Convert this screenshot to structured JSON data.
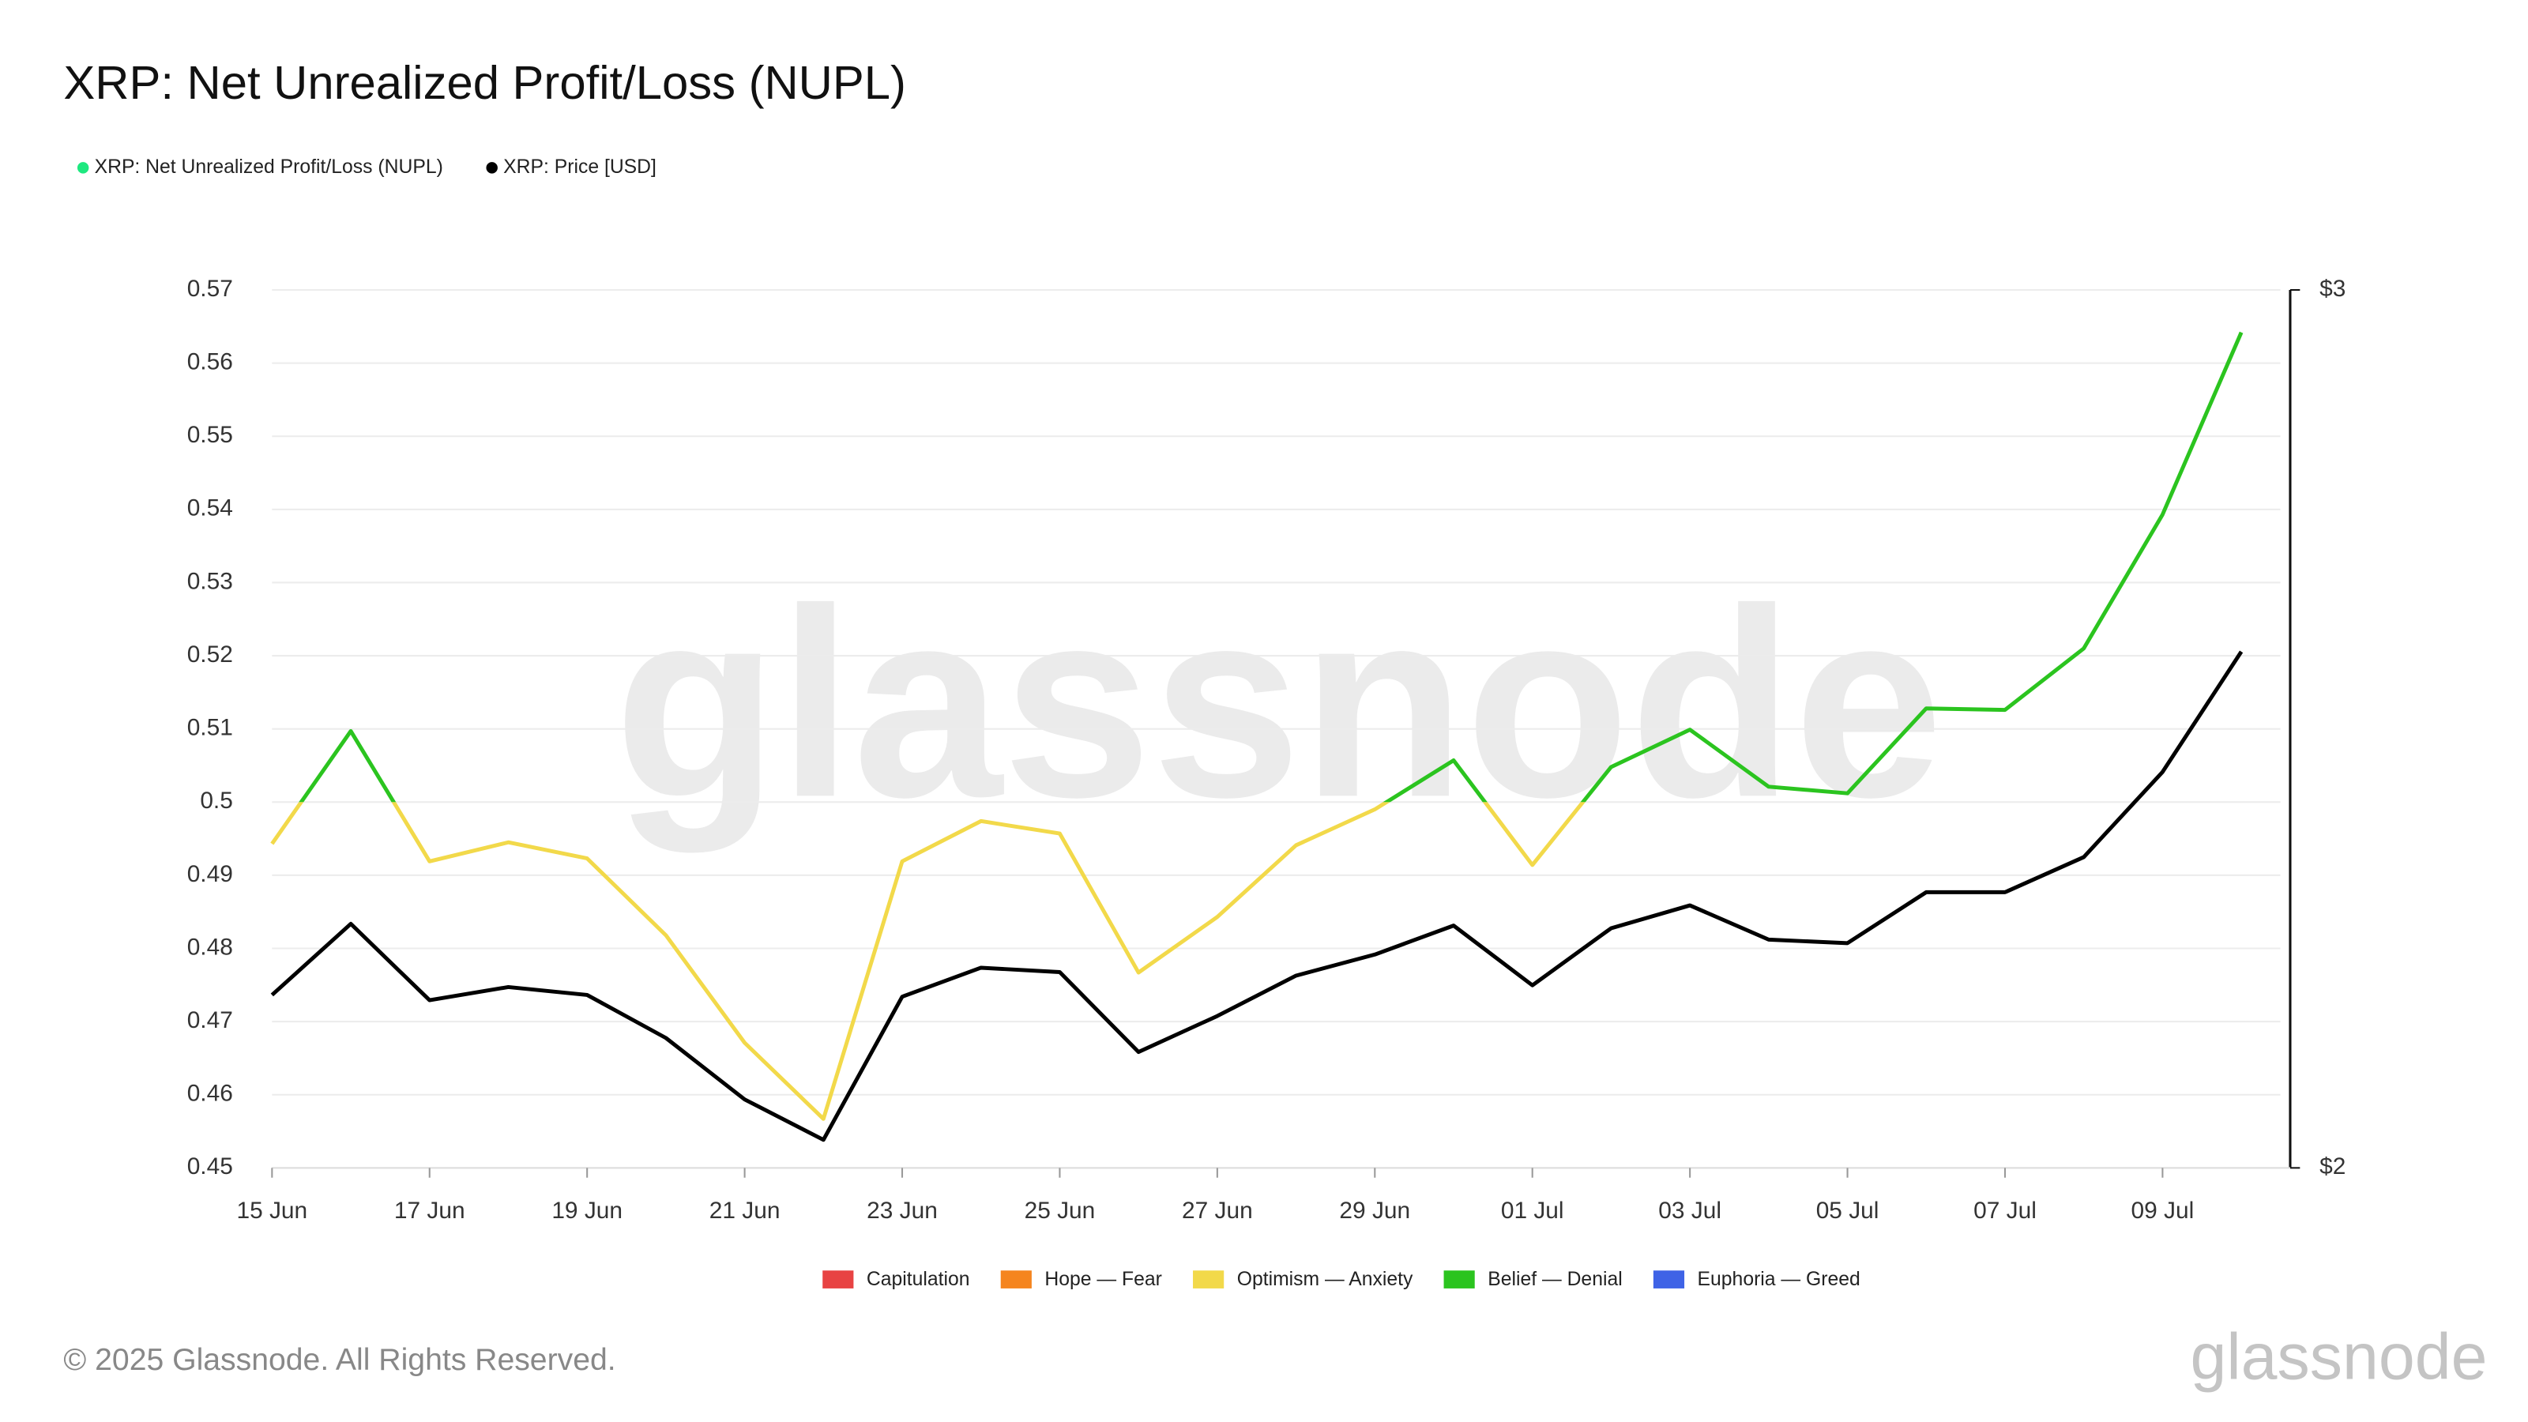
{
  "chart_data": {
    "type": "line",
    "title": "XRP: Net Unrealized Profit/Loss (NUPL)",
    "watermark": "glassnode",
    "copyright": "© 2025 Glassnode. All Rights Reserved.",
    "logo": "glassnode",
    "categories": [
      "15 Jun",
      null,
      "17 Jun",
      null,
      "19 Jun",
      null,
      "21 Jun",
      null,
      "23 Jun",
      null,
      "25 Jun",
      null,
      "27 Jun",
      null,
      "29 Jun",
      null,
      "01 Jul",
      null,
      "03 Jul",
      null,
      "05 Jul",
      null,
      "07 Jul",
      null,
      "09 Jul",
      null
    ],
    "series": [
      {
        "name": "XRP: Net Unrealized Profit/Loss (NUPL)",
        "color": "#1ee87f",
        "values": [
          0.4943,
          0.5097,
          0.4919,
          0.4945,
          0.4923,
          0.4818,
          0.4671,
          0.4567,
          0.4919,
          0.4974,
          0.4957,
          0.4767,
          0.4843,
          0.4941,
          0.499,
          0.5057,
          0.4914,
          0.5048,
          0.5099,
          0.5021,
          0.5012,
          0.5128,
          0.5126,
          0.521,
          0.5393,
          0.5642
        ]
      },
      {
        "name": "XRP: Price [USD]",
        "color": "#000000",
        "axis": "y2",
        "values": [
          2.197,
          2.278,
          2.191,
          2.206,
          2.197,
          2.148,
          2.078,
          2.032,
          2.195,
          2.228,
          2.223,
          2.132,
          2.173,
          2.219,
          2.243,
          2.276,
          2.208,
          2.273,
          2.299,
          2.26,
          2.256,
          2.314,
          2.314,
          2.354,
          2.451,
          2.588
        ]
      }
    ],
    "zones": [
      {
        "name": "Capitulation",
        "color": "#e84343"
      },
      {
        "name": "Hope — Fear",
        "color": "#f5851f"
      },
      {
        "name": "Optimism — Anxiety",
        "color": "#f2d94a"
      },
      {
        "name": "Belief — Denial",
        "color": "#2bc41f"
      },
      {
        "name": "Euphoria — Greed",
        "color": "#3f63e6"
      }
    ],
    "zone_bounds": [
      0,
      0.25,
      0.5,
      0.75
    ],
    "ylim": [
      0.45,
      0.57
    ],
    "yticks": [
      0.45,
      0.46,
      0.47,
      0.48,
      0.49,
      0.5,
      0.51,
      0.52,
      0.53,
      0.54,
      0.55,
      0.56,
      0.57
    ],
    "y2lim": [
      2,
      3
    ],
    "y2ticks": [
      {
        "value": 2,
        "label": "$2"
      },
      {
        "value": 3,
        "label": "$3"
      }
    ],
    "grid": true
  }
}
